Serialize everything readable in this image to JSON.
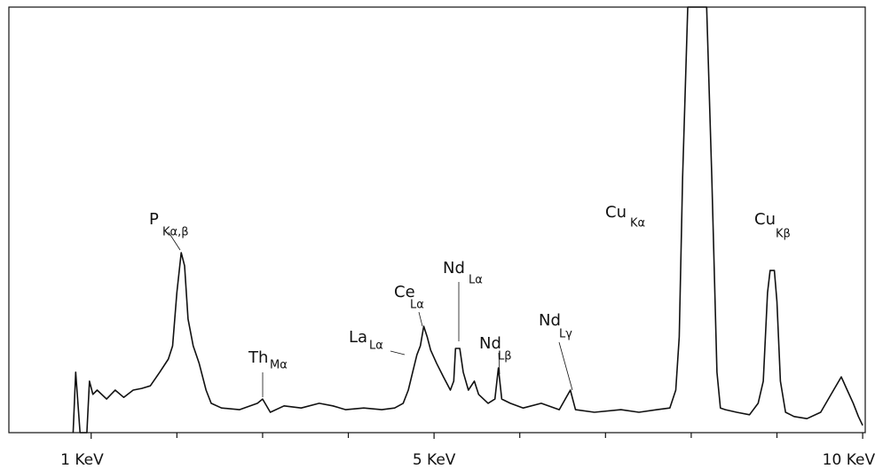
{
  "chart_data": {
    "type": "line",
    "x": [
      0.79,
      0.82,
      0.87,
      0.95,
      0.98,
      1.02,
      1.07,
      1.18,
      1.28,
      1.38,
      1.49,
      1.59,
      1.69,
      1.8,
      1.9,
      1.95,
      2.0,
      2.05,
      2.09,
      2.13,
      2.19,
      2.26,
      2.34,
      2.4,
      2.52,
      2.73,
      2.94,
      3.0,
      3.09,
      3.25,
      3.45,
      3.66,
      3.82,
      3.97,
      4.18,
      4.39,
      4.54,
      4.64,
      4.7,
      4.75,
      4.8,
      4.84,
      4.88,
      4.92,
      4.96,
      5.03,
      5.11,
      5.19,
      5.23,
      5.25,
      5.3,
      5.34,
      5.4,
      5.47,
      5.52,
      5.63,
      5.71,
      5.75,
      5.79,
      5.89,
      6.04,
      6.25,
      6.46,
      6.59,
      6.65,
      6.87,
      7.18,
      7.39,
      7.6,
      7.75,
      7.82,
      7.86,
      7.9,
      7.96,
      8.0,
      8.18,
      8.24,
      8.3,
      8.34,
      8.4,
      8.53,
      8.68,
      8.78,
      8.84,
      8.89,
      8.92,
      8.97,
      9.0,
      9.04,
      9.1,
      9.2,
      9.35,
      9.51,
      9.66,
      9.75,
      9.82,
      9.89,
      9.95,
      10.0
    ],
    "values": [
      0,
      14.2,
      0,
      0,
      12.1,
      9.0,
      10.0,
      7.9,
      10.0,
      8.3,
      10.0,
      10.4,
      11.0,
      14.2,
      17.3,
      20.4,
      32.9,
      42.3,
      39.2,
      26.7,
      20.4,
      16.3,
      10.0,
      6.9,
      5.8,
      5.4,
      6.9,
      7.9,
      4.8,
      6.3,
      5.8,
      6.9,
      6.3,
      5.4,
      5.8,
      5.4,
      5.8,
      6.9,
      10.0,
      14.2,
      18.3,
      20.4,
      25.0,
      22.5,
      19.4,
      16.3,
      13.1,
      10.0,
      12.1,
      19.8,
      19.8,
      14.2,
      10.0,
      12.1,
      9.0,
      6.9,
      7.9,
      15.2,
      7.9,
      6.9,
      5.8,
      6.9,
      5.4,
      10.0,
      5.4,
      4.8,
      5.4,
      4.8,
      5.4,
      5.8,
      10.0,
      22.5,
      60.0,
      100,
      100,
      100,
      60.0,
      14.2,
      5.8,
      5.4,
      4.8,
      4.2,
      6.9,
      12.1,
      32.9,
      38.1,
      38.1,
      30.8,
      12.1,
      4.8,
      3.8,
      3.3,
      4.8,
      10.0,
      13.1,
      10.0,
      6.9,
      3.8,
      1.7
    ],
    "color": "#111111",
    "xlim": [
      0.04,
      10.03
    ],
    "ylim": [
      0,
      100
    ],
    "xticks": [
      {
        "value": 1,
        "label": "1 KeV"
      },
      {
        "value": 5,
        "label": "5 KeV"
      },
      {
        "value": 10,
        "label": "10 KeV"
      }
    ],
    "xminor_ticks": [
      2,
      3,
      4,
      6,
      7,
      8,
      9
    ],
    "annotations": [
      {
        "text": "P",
        "sub": "Kα,β"
      },
      {
        "text": "Th",
        "sub": "Mα"
      },
      {
        "text": "La",
        "sub": "Lα"
      },
      {
        "text": "Ce",
        "sub": "Lα"
      },
      {
        "text": "Nd",
        "sub": "Lα"
      },
      {
        "text": "Nd",
        "sub": "Lβ"
      },
      {
        "text": "Nd",
        "sub": "Lγ"
      },
      {
        "text": "Cu",
        "sub": "Kα"
      },
      {
        "text": "Cu",
        "sub": "Kβ"
      }
    ]
  }
}
